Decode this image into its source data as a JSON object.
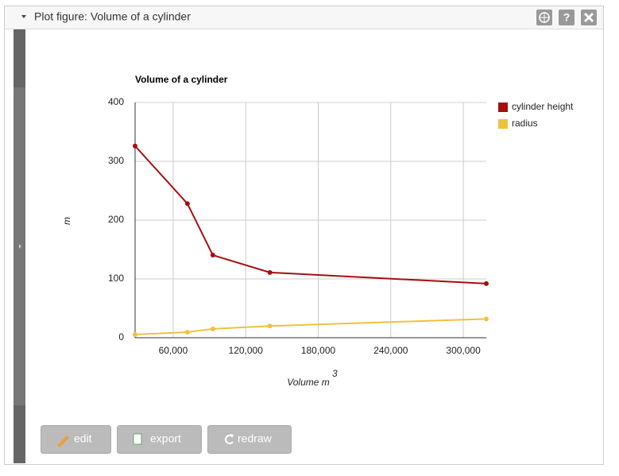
{
  "window": {
    "title": "Plot figure: Volume of a cylinder",
    "help": "?"
  },
  "buttons": [
    "edit",
    "export",
    "redraw"
  ],
  "chart_data": {
    "type": "line",
    "title": "Volume of a cylinder",
    "ylabel": "m",
    "xlabel": "Volume m",
    "xlabel_superscript": "3",
    "x": [
      28500,
      71800,
      92800,
      140000,
      319000
    ],
    "series": [
      {
        "name": "cylinder height",
        "color": "#a50f0f",
        "values": [
          326,
          228,
          140.5,
          111,
          92
        ]
      },
      {
        "name": "radius",
        "color": "#efc23d",
        "values": [
          5.4,
          9.5,
          15,
          20,
          32
        ]
      }
    ],
    "xlim": [
      28500,
      319000
    ],
    "xticks": [
      {
        "value": 60000,
        "label": "60,000"
      },
      {
        "value": 120000,
        "label": "120,000"
      },
      {
        "value": 180000,
        "label": "180,000"
      },
      {
        "value": 240000,
        "label": "240,000"
      },
      {
        "value": 300000,
        "label": "300,000"
      }
    ],
    "ylim": [
      0,
      400
    ],
    "yticks": [
      0,
      100,
      200,
      300,
      400
    ],
    "grid": true,
    "legend": "right"
  }
}
